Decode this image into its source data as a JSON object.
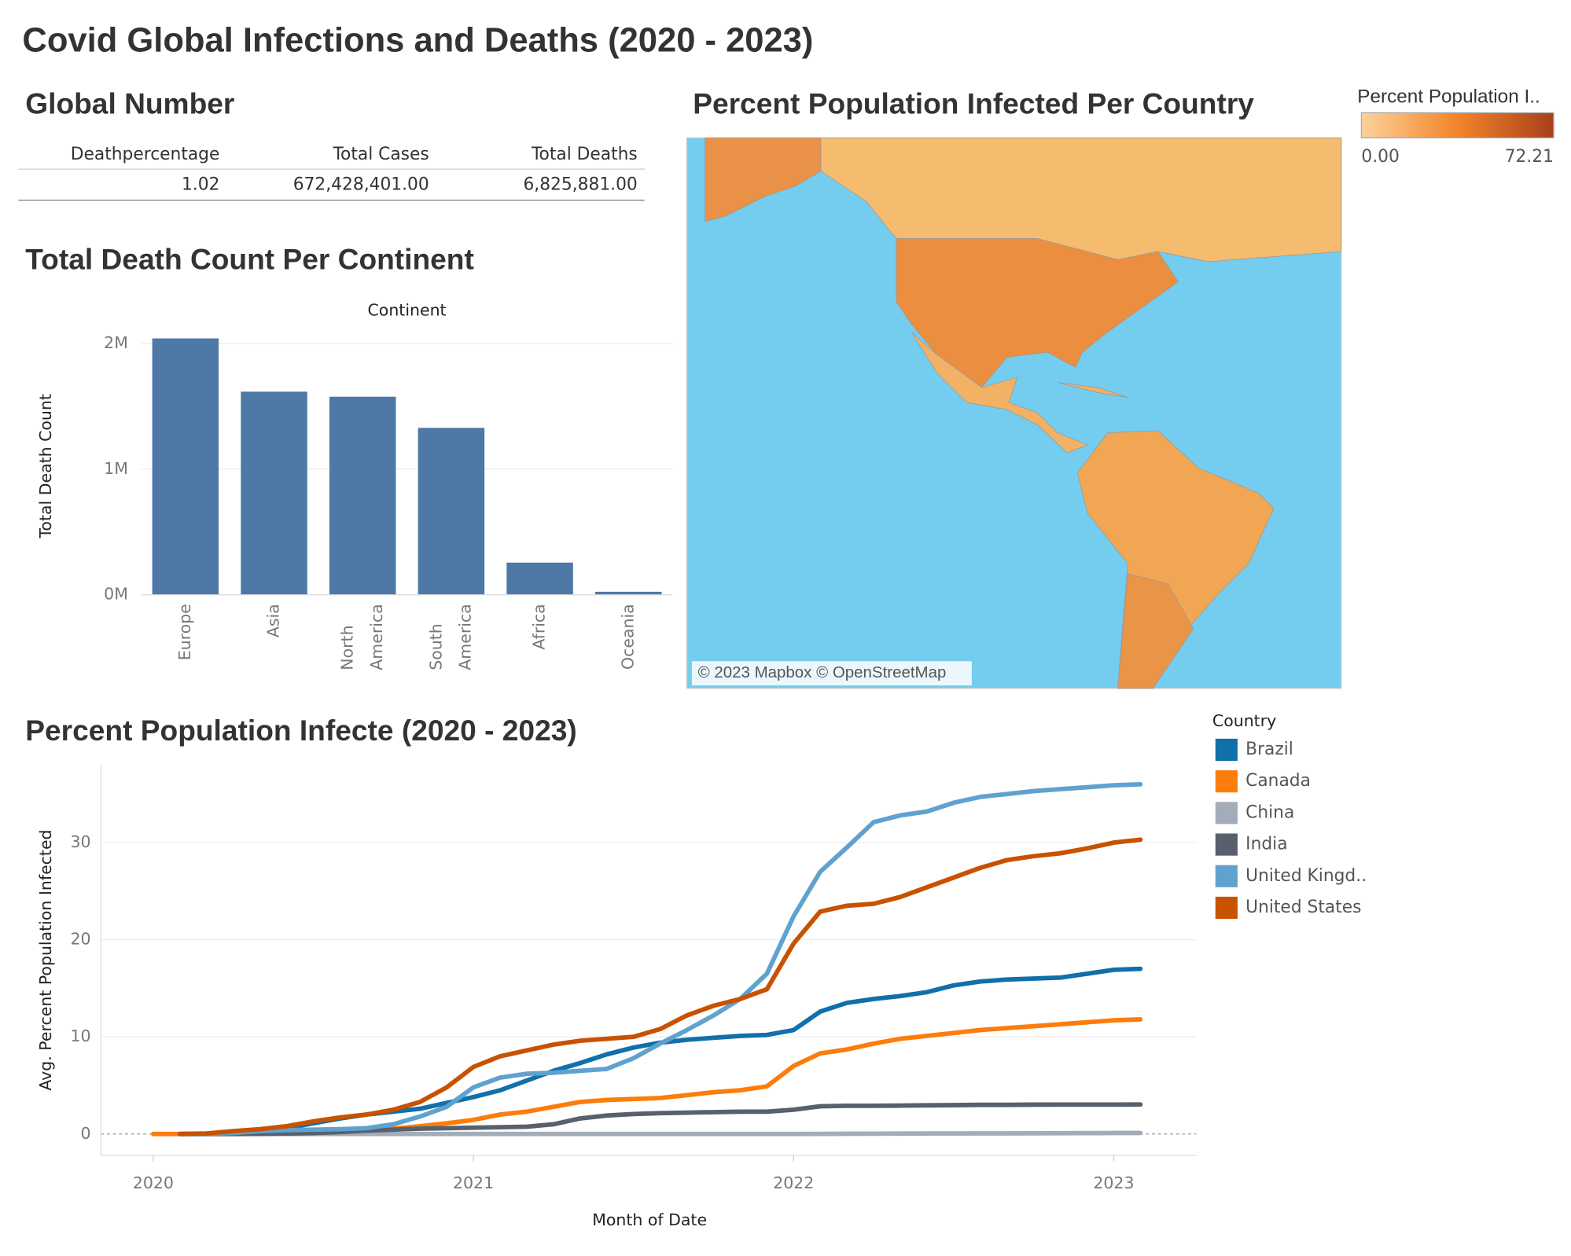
{
  "title": "Covid Global Infections and Deaths (2020 - 2023)",
  "global_number": {
    "title": "Global Number",
    "columns": [
      "Deathpercentage",
      "Total Cases",
      "Total Deaths"
    ],
    "rows": [
      [
        "1.02",
        "672,428,401.00",
        "6,825,881.00"
      ]
    ]
  },
  "chart_data": [
    {
      "type": "bar",
      "title": "Total Death Count Per Continent",
      "x_label": "Continent",
      "y_label": "Total Death Count",
      "categories": [
        "Europe",
        "Asia",
        "North America",
        "South America",
        "Africa",
        "Oceania"
      ],
      "values": [
        2040000,
        1616000,
        1576000,
        1328000,
        256000,
        24000
      ],
      "color": "#4e79a7",
      "ylim": [
        0,
        2050000
      ],
      "yticks": [
        {
          "value": 0,
          "label": "0M"
        },
        {
          "value": 1000000,
          "label": "1M"
        },
        {
          "value": 2000000,
          "label": "2M"
        }
      ],
      "grid": true
    },
    {
      "type": "map",
      "title": "Percent Population Infected Per Country",
      "colorbar": {
        "title": "Percent Population I..",
        "min": {
          "value": 0,
          "label": "0.00"
        },
        "max": 72.21,
        "colors": [
          "#fdd29c",
          "#f2842a",
          "#a8401c"
        ]
      },
      "attribution": "© 2023 Mapbox © OpenStreetMap"
    },
    {
      "type": "line",
      "title": "Percent Population Infecte (2020 - 2023)",
      "x_label": "Month of Date",
      "y_label": "Avg. Percent Population Infected",
      "legend_title": "Country",
      "x": [
        "2020",
        null,
        null,
        null,
        null,
        null,
        null,
        null,
        null,
        null,
        null,
        null,
        "2021",
        null,
        null,
        null,
        null,
        null,
        null,
        null,
        null,
        null,
        null,
        null,
        "2022",
        null,
        null,
        null,
        null,
        null,
        null,
        null,
        null,
        null,
        null,
        null,
        "2023",
        null
      ],
      "series": [
        {
          "name": "Brazil",
          "color": "#1170aa",
          "values": [
            null,
            0,
            0,
            0.05,
            0.2,
            0.6,
            1.1,
            1.6,
            2.0,
            2.3,
            2.6,
            3.2,
            3.8,
            4.5,
            5.5,
            6.5,
            7.3,
            8.2,
            8.9,
            9.4,
            9.7,
            9.9,
            10.1,
            10.2,
            10.7,
            12.6,
            13.5,
            13.9,
            14.2,
            14.6,
            15.3,
            15.7,
            15.9,
            16.0,
            16.1,
            16.5,
            16.9,
            17.0
          ]
        },
        {
          "name": "Canada",
          "color": "#fc7d0b",
          "values": [
            0,
            0,
            0.02,
            0.1,
            0.2,
            0.27,
            0.3,
            0.33,
            0.4,
            0.55,
            0.8,
            1.1,
            1.45,
            2.0,
            2.3,
            2.8,
            3.3,
            3.5,
            3.6,
            3.7,
            4.0,
            4.3,
            4.5,
            4.9,
            7.0,
            8.3,
            8.7,
            9.3,
            9.8,
            10.1,
            10.4,
            10.7,
            10.9,
            11.1,
            11.3,
            11.5,
            11.7,
            11.8
          ]
        },
        {
          "name": "China",
          "color": "#a3acb9",
          "values": [
            null,
            0,
            0,
            0,
            0,
            0,
            0,
            0,
            0,
            0,
            0,
            0,
            0,
            0,
            0,
            0,
            0,
            0,
            0,
            0,
            0,
            0,
            0,
            0,
            0,
            0.01,
            0.02,
            0.03,
            0.04,
            0.05,
            0.05,
            0.06,
            0.06,
            0.07,
            0.08,
            0.09,
            0.1,
            0.1
          ]
        },
        {
          "name": "India",
          "color": "#57606c",
          "values": [
            null,
            0,
            0,
            0,
            0.02,
            0.05,
            0.1,
            0.2,
            0.35,
            0.45,
            0.55,
            0.6,
            0.65,
            0.7,
            0.75,
            1.0,
            1.6,
            1.9,
            2.05,
            2.15,
            2.2,
            2.25,
            2.3,
            2.3,
            2.5,
            2.85,
            2.9,
            2.9,
            2.92,
            2.95,
            2.97,
            3.0,
            3.0,
            3.02,
            3.03,
            3.03,
            3.03,
            3.04
          ]
        },
        {
          "name": "United Kingd..",
          "color": "#5fa2ce",
          "values": [
            null,
            0,
            0.01,
            0.1,
            0.3,
            0.4,
            0.45,
            0.5,
            0.6,
            1.0,
            1.8,
            2.8,
            4.8,
            5.8,
            6.2,
            6.3,
            6.5,
            6.7,
            7.8,
            9.3,
            10.7,
            12.2,
            13.9,
            16.5,
            22.4,
            27.0,
            29.5,
            32.1,
            32.8,
            33.2,
            34.1,
            34.7,
            35.0,
            35.3,
            35.5,
            35.7,
            35.9,
            36.0
          ]
        },
        {
          "name": "United States",
          "color": "#c85200",
          "values": [
            null,
            0,
            0.05,
            0.3,
            0.5,
            0.8,
            1.3,
            1.7,
            2.0,
            2.5,
            3.3,
            4.8,
            6.9,
            8.0,
            8.6,
            9.2,
            9.6,
            9.8,
            10.0,
            10.8,
            12.2,
            13.2,
            13.9,
            14.9,
            19.6,
            22.9,
            23.5,
            23.7,
            24.4,
            25.4,
            26.4,
            27.4,
            28.2,
            28.6,
            28.9,
            29.4,
            30.0,
            30.3
          ]
        }
      ],
      "ylim": [
        -2.2,
        38
      ],
      "yticks": [
        0,
        10,
        20,
        30
      ],
      "grid": true
    }
  ]
}
